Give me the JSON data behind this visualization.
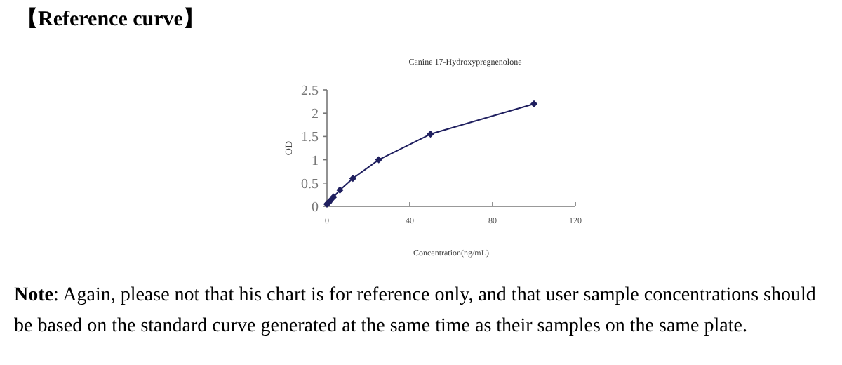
{
  "chart_data": {
    "type": "line",
    "title": "Canine 17-Hydroxypregnenolone",
    "xlabel": "Concentration(ng/mL)",
    "ylabel": "OD",
    "annotations": [
      "【Reference curve】",
      "Note: Again, please not that his chart is for reference only, and that user sample concentrations should be based on the standard curve generated at the same time as their samples on the same plate."
    ],
    "x": [
      0,
      0.78,
      1.56,
      3.125,
      6.25,
      12.5,
      25,
      50,
      100
    ],
    "series": [
      {
        "color": "#1f1f5f",
        "values": [
          0.05,
          0.08,
          0.12,
          0.2,
          0.35,
          0.6,
          1.0,
          1.55,
          2.2
        ]
      }
    ],
    "xlim": [
      0,
      120
    ],
    "xticks": [
      0,
      40,
      80,
      120
    ],
    "ylim": [
      0,
      2.5
    ],
    "yticks": [
      0,
      0.5,
      1,
      1.5,
      2,
      2.5
    ],
    "marker": "diamond",
    "grid": false
  }
}
